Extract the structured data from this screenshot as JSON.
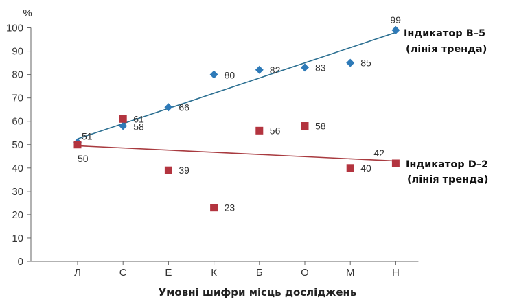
{
  "chart_data": {
    "type": "scatter",
    "categories": [
      "Л",
      "С",
      "Е",
      "К",
      "Б",
      "О",
      "М",
      "Н"
    ],
    "xlabel": "Умовні шифри місць досліджень",
    "ylabel": "%",
    "ylim": [
      0,
      100
    ],
    "yticks": [
      0,
      10,
      20,
      30,
      40,
      50,
      60,
      70,
      80,
      90,
      100
    ],
    "grid": false,
    "series": [
      {
        "name": "Індикатор В–5",
        "trend_label": "(лінія тренда)",
        "marker": "diamond",
        "color": "#2e7ab8",
        "trend_color": "#2b6f91",
        "values": [
          51,
          58,
          66,
          80,
          82,
          83,
          85,
          99
        ],
        "labels": [
          "51",
          "58",
          "66",
          "80",
          "82",
          "83",
          "85",
          "99"
        ],
        "trend": [
          52.5,
          98
        ]
      },
      {
        "name": "Індикатор D–2",
        "trend_label": "(лінія тренда)",
        "marker": "square",
        "color": "#b3343f",
        "trend_color": "#a83a3f",
        "values": [
          50,
          61,
          39,
          23,
          56,
          58,
          40,
          42
        ],
        "labels": [
          "50",
          "61",
          "39",
          "23",
          "56",
          "58",
          "40",
          "42"
        ],
        "trend": [
          49.5,
          43
        ]
      }
    ]
  }
}
